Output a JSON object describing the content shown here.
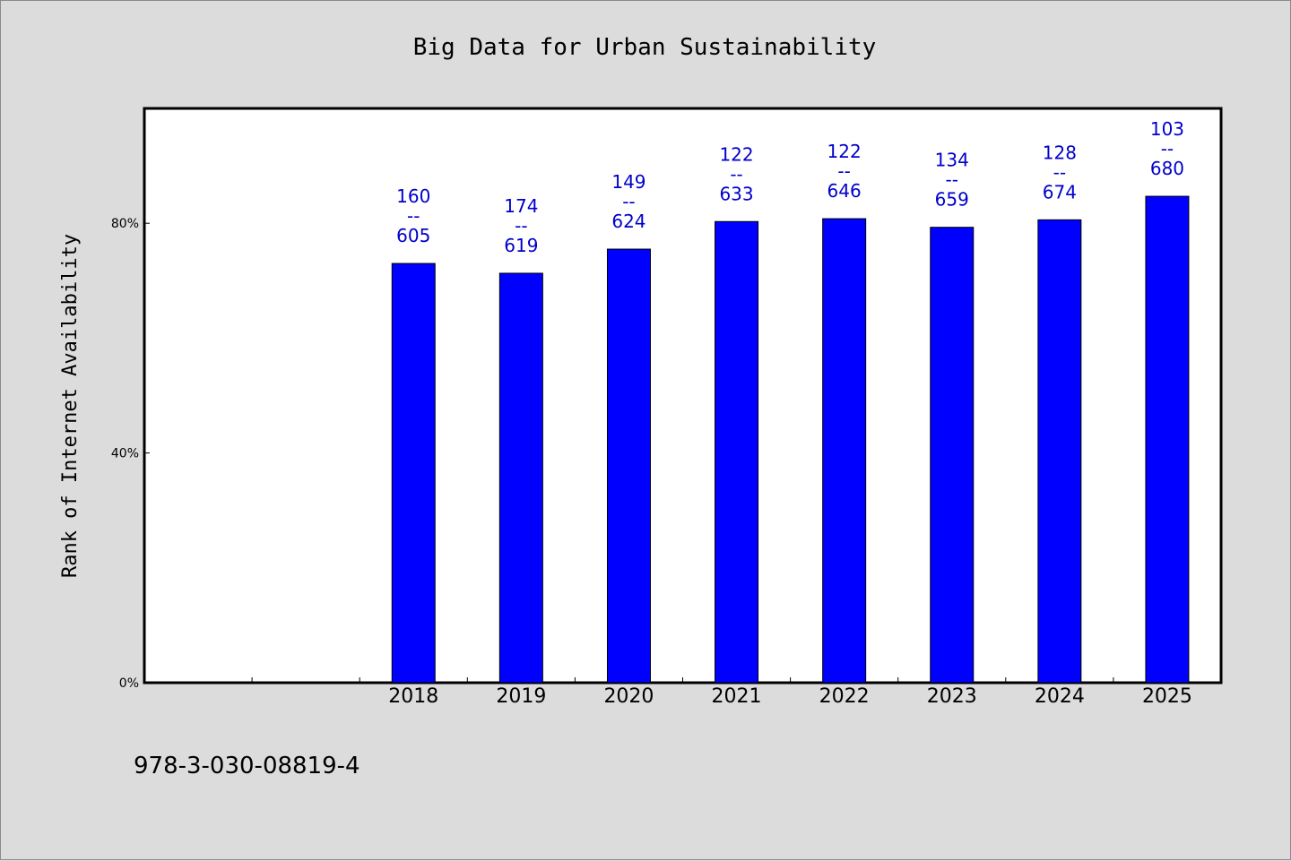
{
  "colors": {
    "background": "#dcdcdc",
    "plot_background": "#ffffff",
    "bar": "#0000ff",
    "bar_label": "#0000cc",
    "axis": "#000000"
  },
  "footnote": "978-3-030-08819-4",
  "chart_data": {
    "type": "bar",
    "title": "Big Data for Urban Sustainability",
    "xlabel": "",
    "ylabel": "Rank of Internet Availability",
    "categories": [
      "",
      "",
      "2018",
      "2019",
      "2020",
      "2021",
      "2022",
      "2023",
      "2024",
      "2025"
    ],
    "values": [
      null,
      null,
      73.0,
      71.3,
      75.5,
      80.3,
      80.8,
      79.3,
      80.6,
      84.7
    ],
    "label_top": [
      "",
      "",
      "160",
      "174",
      "149",
      "122",
      "122",
      "134",
      "128",
      "103"
    ],
    "label_separator": "--",
    "label_bottom": [
      "",
      "",
      "605",
      "619",
      "624",
      "633",
      "646",
      "659",
      "674",
      "680"
    ],
    "ylim": [
      0,
      100
    ],
    "yticks": [
      0,
      40,
      80
    ],
    "ytick_labels": [
      "0%",
      "40%",
      "80%"
    ],
    "grid": false,
    "legend": "none"
  }
}
